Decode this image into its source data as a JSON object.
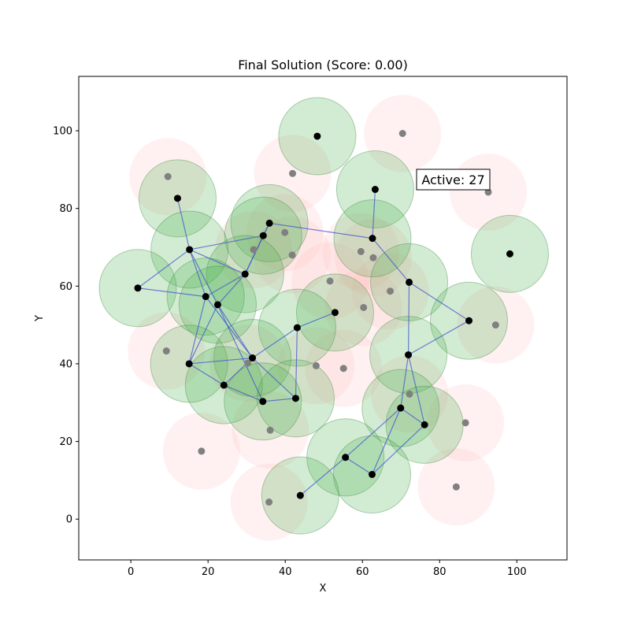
{
  "chart_data": {
    "type": "scatter",
    "title": "Final Solution (Score: 0.00)",
    "xlabel": "X",
    "ylabel": "Y",
    "xlim": [
      -13.5,
      113
    ],
    "ylim": [
      -10.5,
      114
    ],
    "xticks": [
      "0",
      "20",
      "40",
      "60",
      "80",
      "100"
    ],
    "yticks": [
      "0",
      "20",
      "40",
      "60",
      "80",
      "100"
    ],
    "xtick_values": [
      0,
      20,
      40,
      60,
      80,
      100
    ],
    "ytick_values": [
      0,
      20,
      40,
      60,
      80,
      100
    ],
    "grid": false,
    "radius": 10,
    "annotation": "Active: 27",
    "colors": {
      "active_circle": "#4caf50",
      "inactive_circle": "#ffc0c0",
      "active_point": "#000000",
      "inactive_point": "#808080",
      "edge": "#3a4fd0"
    },
    "active_nodes": [
      [
        48.3,
        98.6
      ],
      [
        12.1,
        82.6
      ],
      [
        63.3,
        84.9
      ],
      [
        35.9,
        76.2
      ],
      [
        34.3,
        73.0
      ],
      [
        15.2,
        69.4
      ],
      [
        62.6,
        72.3
      ],
      [
        98.2,
        68.3
      ],
      [
        29.6,
        63.1
      ],
      [
        1.8,
        59.5
      ],
      [
        72.1,
        61.0
      ],
      [
        19.4,
        57.3
      ],
      [
        22.5,
        55.2
      ],
      [
        52.9,
        53.2
      ],
      [
        43.1,
        49.3
      ],
      [
        87.6,
        51.1
      ],
      [
        31.5,
        41.5
      ],
      [
        15.1,
        40.0
      ],
      [
        71.9,
        42.3
      ],
      [
        24.1,
        34.5
      ],
      [
        42.7,
        31.1
      ],
      [
        34.2,
        30.3
      ],
      [
        69.9,
        28.6
      ],
      [
        76.1,
        24.3
      ],
      [
        55.6,
        15.9
      ],
      [
        62.5,
        11.5
      ],
      [
        43.9,
        6.1
      ]
    ],
    "inactive_nodes": [
      [
        70.4,
        99.3
      ],
      [
        9.6,
        88.2
      ],
      [
        41.9,
        89.0
      ],
      [
        92.6,
        84.2
      ],
      [
        39.9,
        73.8
      ],
      [
        31.8,
        69.4
      ],
      [
        41.8,
        68.0
      ],
      [
        59.6,
        68.9
      ],
      [
        62.8,
        67.3
      ],
      [
        51.6,
        61.3
      ],
      [
        67.2,
        58.7
      ],
      [
        60.3,
        54.5
      ],
      [
        94.5,
        50.0
      ],
      [
        9.2,
        43.3
      ],
      [
        30.3,
        40.2
      ],
      [
        48.0,
        39.5
      ],
      [
        55.1,
        38.8
      ],
      [
        72.2,
        32.2
      ],
      [
        86.7,
        24.8
      ],
      [
        36.1,
        22.9
      ],
      [
        18.3,
        17.5
      ],
      [
        84.3,
        8.3
      ],
      [
        35.8,
        4.4
      ]
    ],
    "edges": [
      [
        1,
        5
      ],
      [
        3,
        4
      ],
      [
        3,
        8
      ],
      [
        4,
        5
      ],
      [
        4,
        8
      ],
      [
        3,
        6
      ],
      [
        2,
        6
      ],
      [
        5,
        9
      ],
      [
        5,
        11
      ],
      [
        5,
        12
      ],
      [
        5,
        8
      ],
      [
        8,
        11
      ],
      [
        8,
        12
      ],
      [
        9,
        11
      ],
      [
        6,
        10
      ],
      [
        10,
        15
      ],
      [
        10,
        18
      ],
      [
        15,
        18
      ],
      [
        13,
        14
      ],
      [
        14,
        16
      ],
      [
        14,
        20
      ],
      [
        11,
        17
      ],
      [
        11,
        16
      ],
      [
        12,
        16
      ],
      [
        12,
        17
      ],
      [
        12,
        21
      ],
      [
        16,
        17
      ],
      [
        16,
        19
      ],
      [
        16,
        20
      ],
      [
        17,
        19
      ],
      [
        19,
        21
      ],
      [
        20,
        21
      ],
      [
        18,
        22
      ],
      [
        18,
        23
      ],
      [
        22,
        23
      ],
      [
        22,
        24
      ],
      [
        22,
        25
      ],
      [
        23,
        25
      ],
      [
        24,
        25
      ],
      [
        24,
        26
      ]
    ]
  }
}
